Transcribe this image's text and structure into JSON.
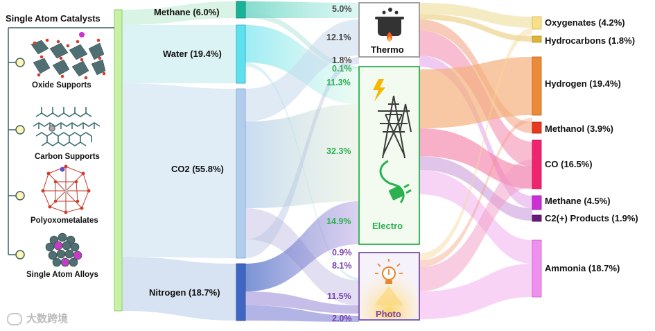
{
  "title": "Single Atom Catalysts",
  "supports": [
    {
      "label": "Oxide Supports"
    },
    {
      "label": "Carbon Supports"
    },
    {
      "label": "Polyoxometalates"
    },
    {
      "label": "Single Atom Alloys"
    }
  ],
  "reactants": [
    {
      "label": "Methane (6.0%)",
      "value": 6.0,
      "color": "#19b39a"
    },
    {
      "label": "Water (19.4%)",
      "value": 19.4,
      "color": "#5ee0ee"
    },
    {
      "label": "CO2 (55.8%)",
      "value": 55.8,
      "color": "#b2cdec"
    },
    {
      "label": "Nitrogen (18.7%)",
      "value": 18.7,
      "color": "#3f66c2"
    }
  ],
  "catalysis": [
    {
      "label": "Thermo",
      "color": "#888888"
    },
    {
      "label": "Electro",
      "color": "#2bb14f"
    },
    {
      "label": "Photo",
      "color": "#7a4fa8"
    }
  ],
  "flow_labels": {
    "thermo": [
      "5.0%",
      "12.1%",
      "1.8%"
    ],
    "electro": [
      "0.1%",
      "11.3%",
      "32.3%",
      "14.9%"
    ],
    "photo": [
      "0.9%",
      "8.1%",
      "11.5%",
      "2.0%"
    ]
  },
  "flow_label_colors": {
    "thermo": "#444444",
    "electro": "#2bb14f",
    "photo": "#7a3fb0"
  },
  "products": [
    {
      "label": "Oxygenates (4.2%)",
      "value": 4.2,
      "color": "#f6e08a"
    },
    {
      "label": "Hydrocarbons (1.8%)",
      "value": 1.8,
      "color": "#e0b43a"
    },
    {
      "label": "Hydrogen (19.4%)",
      "value": 19.4,
      "color": "#ec8a3a"
    },
    {
      "label": "Methanol (3.9%)",
      "value": 3.9,
      "color": "#e8381e"
    },
    {
      "label": "CO (16.5%)",
      "value": 16.5,
      "color": "#f0246e"
    },
    {
      "label": "Methane (4.5%)",
      "value": 4.5,
      "color": "#cc2fd6"
    },
    {
      "label": "C2(+) Products (1.9%)",
      "value": 1.9,
      "color": "#6a1a7a"
    },
    {
      "label": "Ammonia (18.7%)",
      "value": 18.7,
      "color": "#ef90ee"
    }
  ],
  "watermark": "大数跨境"
}
